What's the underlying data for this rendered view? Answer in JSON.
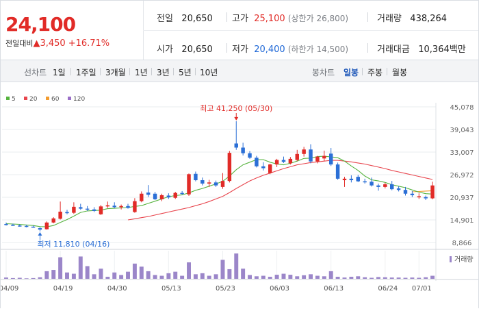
{
  "price": {
    "current": "24,100",
    "change_label": "전일대비",
    "change_arrow": "▲",
    "change_amount": "3,450",
    "change_pct": "+16.71%"
  },
  "stats": {
    "prev_close_label": "전일",
    "prev_close": "20,650",
    "high_label": "고가",
    "high": "25,100",
    "upper_limit_text": "(상한가 26,800)",
    "volume_label": "거래량",
    "volume": "438,264",
    "open_label": "시가",
    "open": "20,650",
    "low_label": "저가",
    "low": "20,400",
    "lower_limit_text": "(하한가 14,500)",
    "amount_label": "거래대금",
    "amount_value": "10,364",
    "amount_unit": "백만"
  },
  "tabs": {
    "line_chart_label": "선차트",
    "periods": [
      "1일",
      "1주일",
      "3개월",
      "1년",
      "3년",
      "5년",
      "10년"
    ],
    "candle_label": "봉차트",
    "candles": [
      "일봉",
      "주봉",
      "월봉"
    ],
    "candle_active": "일봉"
  },
  "colors": {
    "up": "#e12b27",
    "down": "#2b6fd6",
    "ma5": "#56b33e",
    "ma20": "#e8454d",
    "ma60": "#f39c2f",
    "ma120": "#9b6fc8",
    "volume": "#9b86c9"
  },
  "chart_data": {
    "type": "candlestick",
    "legend": [
      {
        "name": "5",
        "color": "#56b33e"
      },
      {
        "name": "20",
        "color": "#e8454d"
      },
      {
        "name": "60",
        "color": "#f39c2f"
      },
      {
        "name": "120",
        "color": "#9b6fc8"
      }
    ],
    "y_ticks": [
      "45,078",
      "39,043",
      "33,007",
      "26,972",
      "20,937",
      "14,901",
      "8,866"
    ],
    "ylim": [
      8866,
      45078
    ],
    "x_ticks": [
      {
        "label": "04/09",
        "index": 0
      },
      {
        "label": "04/19",
        "index": 8
      },
      {
        "label": "04/30",
        "index": 16
      },
      {
        "label": "05/13",
        "index": 24
      },
      {
        "label": "05/23",
        "index": 32
      },
      {
        "label": "06/03",
        "index": 40
      },
      {
        "label": "06/13",
        "index": 48
      },
      {
        "label": "06/24",
        "index": 56
      },
      {
        "label": "07/01",
        "index": 61
      }
    ],
    "max_annotation": "최고 41,250 (05/30)",
    "min_annotation": "최저 11,810 (04/16)",
    "volume_legend": "거래량",
    "candles": [
      {
        "o": 13800,
        "h": 14200,
        "l": 13400,
        "c": 13600
      },
      {
        "o": 13600,
        "h": 13900,
        "l": 13300,
        "c": 13400
      },
      {
        "o": 13400,
        "h": 13700,
        "l": 13100,
        "c": 13300
      },
      {
        "o": 13300,
        "h": 13600,
        "l": 12900,
        "c": 13100
      },
      {
        "o": 13100,
        "h": 13400,
        "l": 12800,
        "c": 12900
      },
      {
        "o": 12700,
        "h": 13000,
        "l": 11810,
        "c": 12300
      },
      {
        "o": 12400,
        "h": 14500,
        "l": 12300,
        "c": 14200
      },
      {
        "o": 14200,
        "h": 15600,
        "l": 14000,
        "c": 15300
      },
      {
        "o": 15200,
        "h": 19800,
        "l": 15000,
        "c": 17100
      },
      {
        "o": 17000,
        "h": 17600,
        "l": 16400,
        "c": 16700
      },
      {
        "o": 16800,
        "h": 19600,
        "l": 16500,
        "c": 18400
      },
      {
        "o": 18300,
        "h": 19200,
        "l": 17600,
        "c": 17900
      },
      {
        "o": 17900,
        "h": 18600,
        "l": 17300,
        "c": 17700
      },
      {
        "o": 17700,
        "h": 18300,
        "l": 17000,
        "c": 17300
      },
      {
        "o": 16400,
        "h": 18900,
        "l": 16200,
        "c": 18500
      },
      {
        "o": 18500,
        "h": 19800,
        "l": 18100,
        "c": 18800
      },
      {
        "o": 18700,
        "h": 19600,
        "l": 18000,
        "c": 18300
      },
      {
        "o": 18300,
        "h": 19000,
        "l": 17700,
        "c": 18600
      },
      {
        "o": 18600,
        "h": 19200,
        "l": 17900,
        "c": 18100
      },
      {
        "o": 17000,
        "h": 20700,
        "l": 16800,
        "c": 19900
      },
      {
        "o": 19900,
        "h": 22500,
        "l": 19600,
        "c": 21900
      },
      {
        "o": 22200,
        "h": 24200,
        "l": 21000,
        "c": 21600
      },
      {
        "o": 21900,
        "h": 22400,
        "l": 20200,
        "c": 20400
      },
      {
        "o": 20400,
        "h": 21900,
        "l": 19900,
        "c": 21500
      },
      {
        "o": 21400,
        "h": 22000,
        "l": 20500,
        "c": 20900
      },
      {
        "o": 20800,
        "h": 22400,
        "l": 20500,
        "c": 22100
      },
      {
        "o": 22100,
        "h": 22600,
        "l": 21600,
        "c": 22000
      },
      {
        "o": 21700,
        "h": 27300,
        "l": 21300,
        "c": 27100
      },
      {
        "o": 27200,
        "h": 27800,
        "l": 25200,
        "c": 25500
      },
      {
        "o": 25500,
        "h": 26200,
        "l": 24100,
        "c": 24600
      },
      {
        "o": 24600,
        "h": 25600,
        "l": 23700,
        "c": 24900
      },
      {
        "o": 24900,
        "h": 25400,
        "l": 23700,
        "c": 24100
      },
      {
        "o": 23700,
        "h": 27400,
        "l": 23200,
        "c": 25300
      },
      {
        "o": 25300,
        "h": 33300,
        "l": 24900,
        "c": 32800
      },
      {
        "o": 35300,
        "h": 41250,
        "l": 33600,
        "c": 34200
      },
      {
        "o": 34200,
        "h": 35500,
        "l": 32100,
        "c": 32700
      },
      {
        "o": 32700,
        "h": 33300,
        "l": 31200,
        "c": 31500
      },
      {
        "o": 31500,
        "h": 32000,
        "l": 28900,
        "c": 29200
      },
      {
        "o": 29200,
        "h": 30300,
        "l": 28100,
        "c": 28700
      },
      {
        "o": 27400,
        "h": 29900,
        "l": 27100,
        "c": 29700
      },
      {
        "o": 29700,
        "h": 31200,
        "l": 29000,
        "c": 30900
      },
      {
        "o": 30900,
        "h": 31800,
        "l": 30100,
        "c": 30400
      },
      {
        "o": 30000,
        "h": 31700,
        "l": 29700,
        "c": 31200
      },
      {
        "o": 30900,
        "h": 33600,
        "l": 30600,
        "c": 32500
      },
      {
        "o": 32500,
        "h": 34400,
        "l": 31800,
        "c": 33700
      },
      {
        "o": 33700,
        "h": 35100,
        "l": 30000,
        "c": 30500
      },
      {
        "o": 30500,
        "h": 32000,
        "l": 30000,
        "c": 31800
      },
      {
        "o": 31300,
        "h": 33400,
        "l": 30600,
        "c": 32000
      },
      {
        "o": 32600,
        "h": 34100,
        "l": 29300,
        "c": 29700
      },
      {
        "o": 29700,
        "h": 30200,
        "l": 25600,
        "c": 25900
      },
      {
        "o": 25500,
        "h": 26400,
        "l": 23700,
        "c": 25900
      },
      {
        "o": 25900,
        "h": 26800,
        "l": 24900,
        "c": 25500
      },
      {
        "o": 26400,
        "h": 26900,
        "l": 25000,
        "c": 25200
      },
      {
        "o": 25200,
        "h": 25900,
        "l": 24600,
        "c": 25000
      },
      {
        "o": 25100,
        "h": 26200,
        "l": 23800,
        "c": 24100
      },
      {
        "o": 24100,
        "h": 24600,
        "l": 22700,
        "c": 23700
      },
      {
        "o": 23700,
        "h": 24800,
        "l": 23300,
        "c": 24400
      },
      {
        "o": 24400,
        "h": 25300,
        "l": 22800,
        "c": 23100
      },
      {
        "o": 23300,
        "h": 23900,
        "l": 22500,
        "c": 22900
      },
      {
        "o": 22900,
        "h": 23700,
        "l": 21400,
        "c": 21900
      },
      {
        "o": 21900,
        "h": 22600,
        "l": 21000,
        "c": 21500
      },
      {
        "o": 21200,
        "h": 22000,
        "l": 20500,
        "c": 21200
      },
      {
        "o": 21000,
        "h": 21400,
        "l": 20200,
        "c": 20650
      },
      {
        "o": 20650,
        "h": 25100,
        "l": 20400,
        "c": 24100
      }
    ],
    "volumes": [
      0.05,
      0.03,
      0.04,
      0.02,
      0.03,
      0.06,
      0.3,
      0.35,
      0.85,
      0.25,
      0.2,
      0.88,
      0.5,
      0.18,
      0.4,
      0.08,
      0.25,
      0.15,
      0.28,
      0.6,
      0.48,
      0.3,
      0.15,
      0.12,
      0.22,
      0.28,
      0.12,
      0.65,
      0.18,
      0.22,
      0.12,
      0.18,
      0.75,
      0.38,
      1.0,
      0.4,
      0.15,
      0.1,
      0.12,
      0.08,
      0.16,
      0.2,
      0.16,
      0.1,
      0.14,
      0.18,
      0.12,
      0.1,
      0.3,
      0.08,
      0.05,
      0.08,
      0.1,
      0.06,
      0.04,
      0.07,
      0.06,
      0.05,
      0.05,
      0.04,
      0.05,
      0.04,
      0.06,
      0.12
    ],
    "ma5": [
      13900,
      13800,
      13700,
      13550,
      13400,
      13100,
      13050,
      13400,
      14200,
      15000,
      15900,
      16900,
      17300,
      17400,
      17500,
      17900,
      18000,
      18100,
      18200,
      18500,
      18700,
      19300,
      19900,
      20500,
      21100,
      21400,
      21600,
      22100,
      22800,
      23300,
      23900,
      24500,
      25200,
      26600,
      28300,
      29600,
      30300,
      31000,
      31000,
      30300,
      29800,
      29600,
      30000,
      30600,
      31300,
      31400,
      31800,
      31900,
      31700,
      31500,
      30600,
      29300,
      28100,
      26600,
      25600,
      25300,
      24900,
      24300,
      23900,
      23500,
      22900,
      22300,
      21900,
      21800
    ],
    "ma20": [
      null,
      null,
      null,
      null,
      null,
      null,
      null,
      null,
      null,
      null,
      null,
      null,
      null,
      null,
      null,
      null,
      null,
      null,
      14900,
      15200,
      15500,
      15800,
      16200,
      16600,
      17000,
      17400,
      17800,
      18200,
      18700,
      19200,
      19800,
      20500,
      21200,
      22200,
      23300,
      24300,
      25300,
      26100,
      26800,
      27400,
      28000,
      28600,
      29100,
      29600,
      29900,
      30200,
      30400,
      30600,
      30800,
      30800,
      30600,
      30400,
      30100,
      29800,
      29400,
      29000,
      28600,
      28100,
      27700,
      27300,
      26900,
      26500,
      26100,
      25700
    ],
    "ma60": [
      null,
      null,
      null,
      null,
      null,
      null,
      null,
      null,
      null,
      null,
      null,
      null,
      null,
      null,
      null,
      null,
      null,
      null,
      null,
      null,
      null,
      null,
      null,
      null,
      null,
      null,
      null,
      null,
      null,
      null,
      null,
      null,
      null,
      null,
      null,
      null,
      null,
      null,
      null,
      null,
      null,
      null,
      null,
      null,
      null,
      null,
      null,
      null,
      null,
      null,
      null,
      null,
      null,
      null,
      null,
      null,
      null,
      null,
      null,
      null,
      22400,
      22500,
      22600,
      22700
    ]
  }
}
